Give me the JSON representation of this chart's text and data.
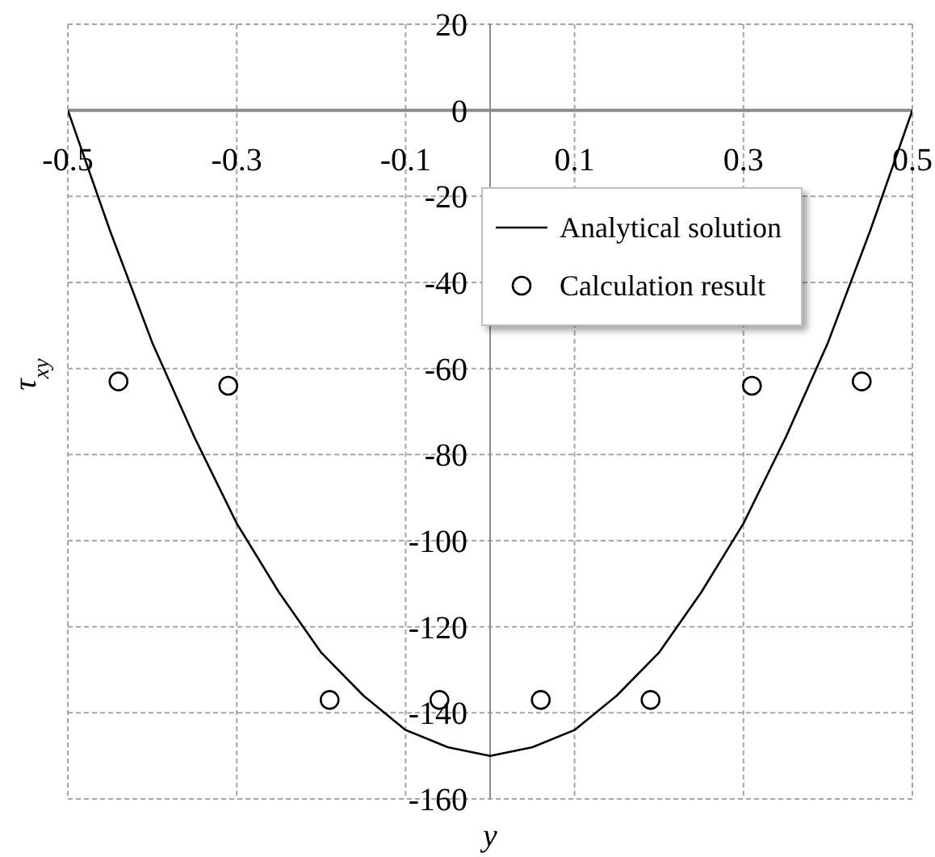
{
  "chart_data": {
    "type": "line",
    "xlabel": "y",
    "ylabel": "τ$_{xy}$",
    "xlim": [
      -0.5,
      0.5
    ],
    "xticks": [
      -0.5,
      -0.3,
      -0.1,
      0.1,
      0.3,
      0.5
    ],
    "ylim": [
      -160,
      20
    ],
    "yticks": [
      -160,
      -140,
      -120,
      -100,
      -80,
      -60,
      -40,
      -20,
      0,
      20
    ],
    "grid": true,
    "legend": "top right",
    "series": [
      {
        "name": "Analytical solution",
        "color": "#000000",
        "x": [
          -0.5,
          -0.45,
          -0.4,
          -0.35,
          -0.3,
          -0.25,
          -0.2,
          -0.15,
          -0.1,
          -0.05,
          0,
          0.05,
          0.1,
          0.15,
          0.2,
          0.25,
          0.3,
          0.35,
          0.4,
          0.45,
          0.5
        ],
        "values": [
          0,
          -28,
          -54,
          -76,
          -96,
          -112,
          -126,
          -136,
          -144,
          -148,
          -150,
          -148,
          -144,
          -136,
          -126,
          -112,
          -96,
          -76,
          -54,
          -28,
          0
        ]
      },
      {
        "name": "Calculation result",
        "type": "scatter",
        "color": "#000000",
        "marker": "circle",
        "x": [
          -0.44,
          -0.31,
          -0.19,
          -0.06,
          0.06,
          0.19,
          0.31,
          0.44
        ],
        "values": [
          -63,
          -64,
          -137,
          -137,
          -137,
          -137,
          -64,
          -63
        ]
      }
    ]
  }
}
